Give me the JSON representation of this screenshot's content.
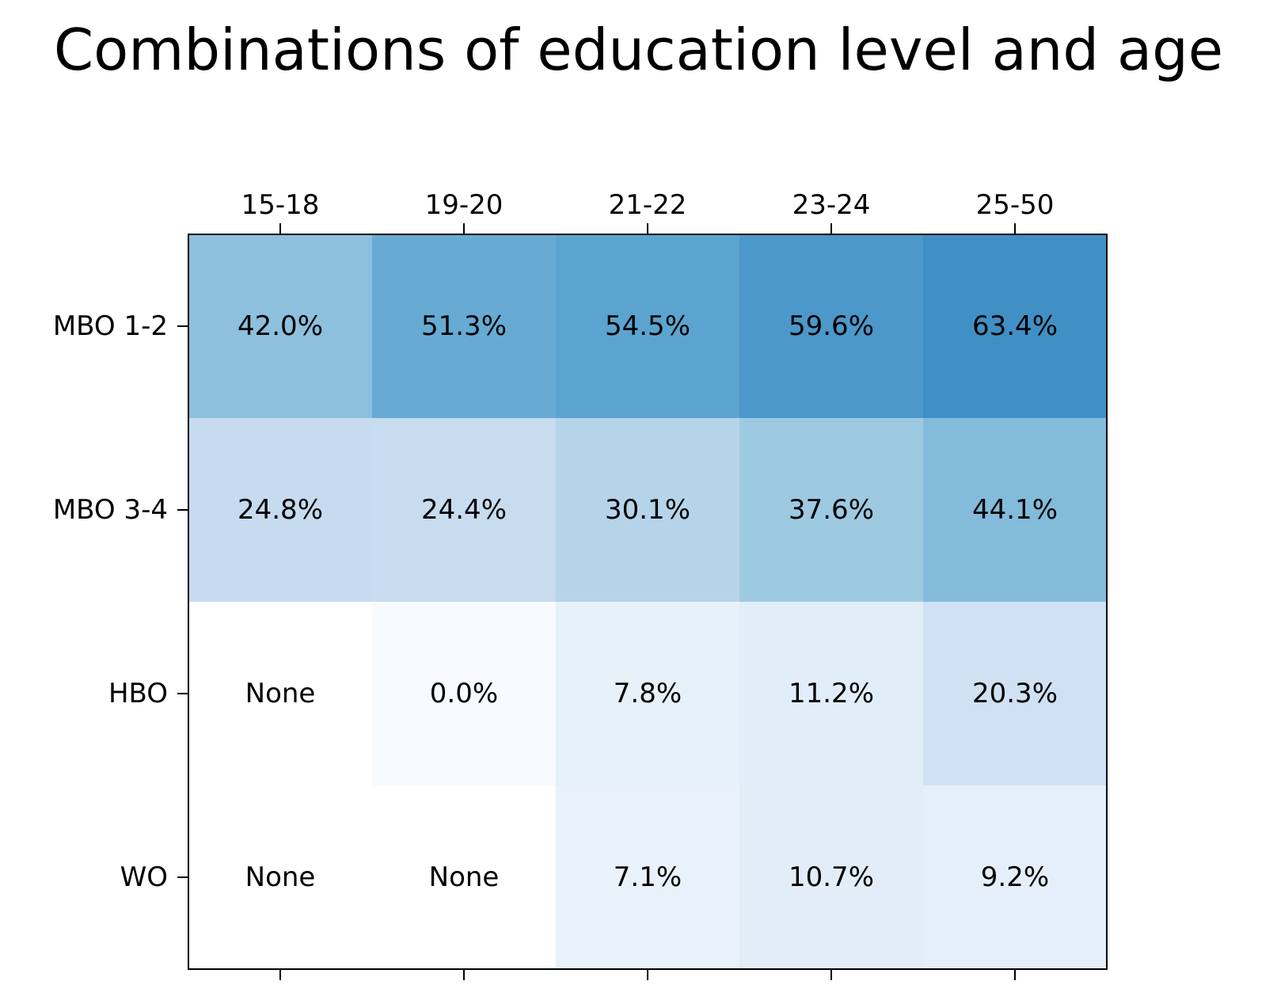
{
  "chart_data": {
    "type": "heatmap",
    "title": "Combinations of education level and age",
    "xlabel": "",
    "ylabel": "",
    "columns": [
      "15-18",
      "19-20",
      "21-22",
      "23-24",
      "25-50"
    ],
    "rows": [
      "MBO 1-2",
      "MBO 3-4",
      "HBO",
      "WO"
    ],
    "values": [
      [
        42.0,
        51.3,
        54.5,
        59.6,
        63.4
      ],
      [
        24.8,
        24.4,
        30.1,
        37.6,
        44.1
      ],
      [
        null,
        0.0,
        7.8,
        11.2,
        20.3
      ],
      [
        null,
        null,
        7.1,
        10.7,
        9.2
      ]
    ],
    "cell_labels": [
      [
        "42.0%",
        "51.3%",
        "54.5%",
        "59.6%",
        "63.4%"
      ],
      [
        "24.8%",
        "24.4%",
        "30.1%",
        "37.6%",
        "44.1%"
      ],
      [
        "None",
        "0.0%",
        "7.8%",
        "11.2%",
        "20.3%"
      ],
      [
        "None",
        "None",
        "7.1%",
        "10.7%",
        "9.2%"
      ]
    ],
    "colormap": "Blues",
    "color_range": [
      0,
      100
    ],
    "missing_color": "#ffffff",
    "grid": false,
    "legend": "none",
    "x_ticks_position": "top"
  }
}
